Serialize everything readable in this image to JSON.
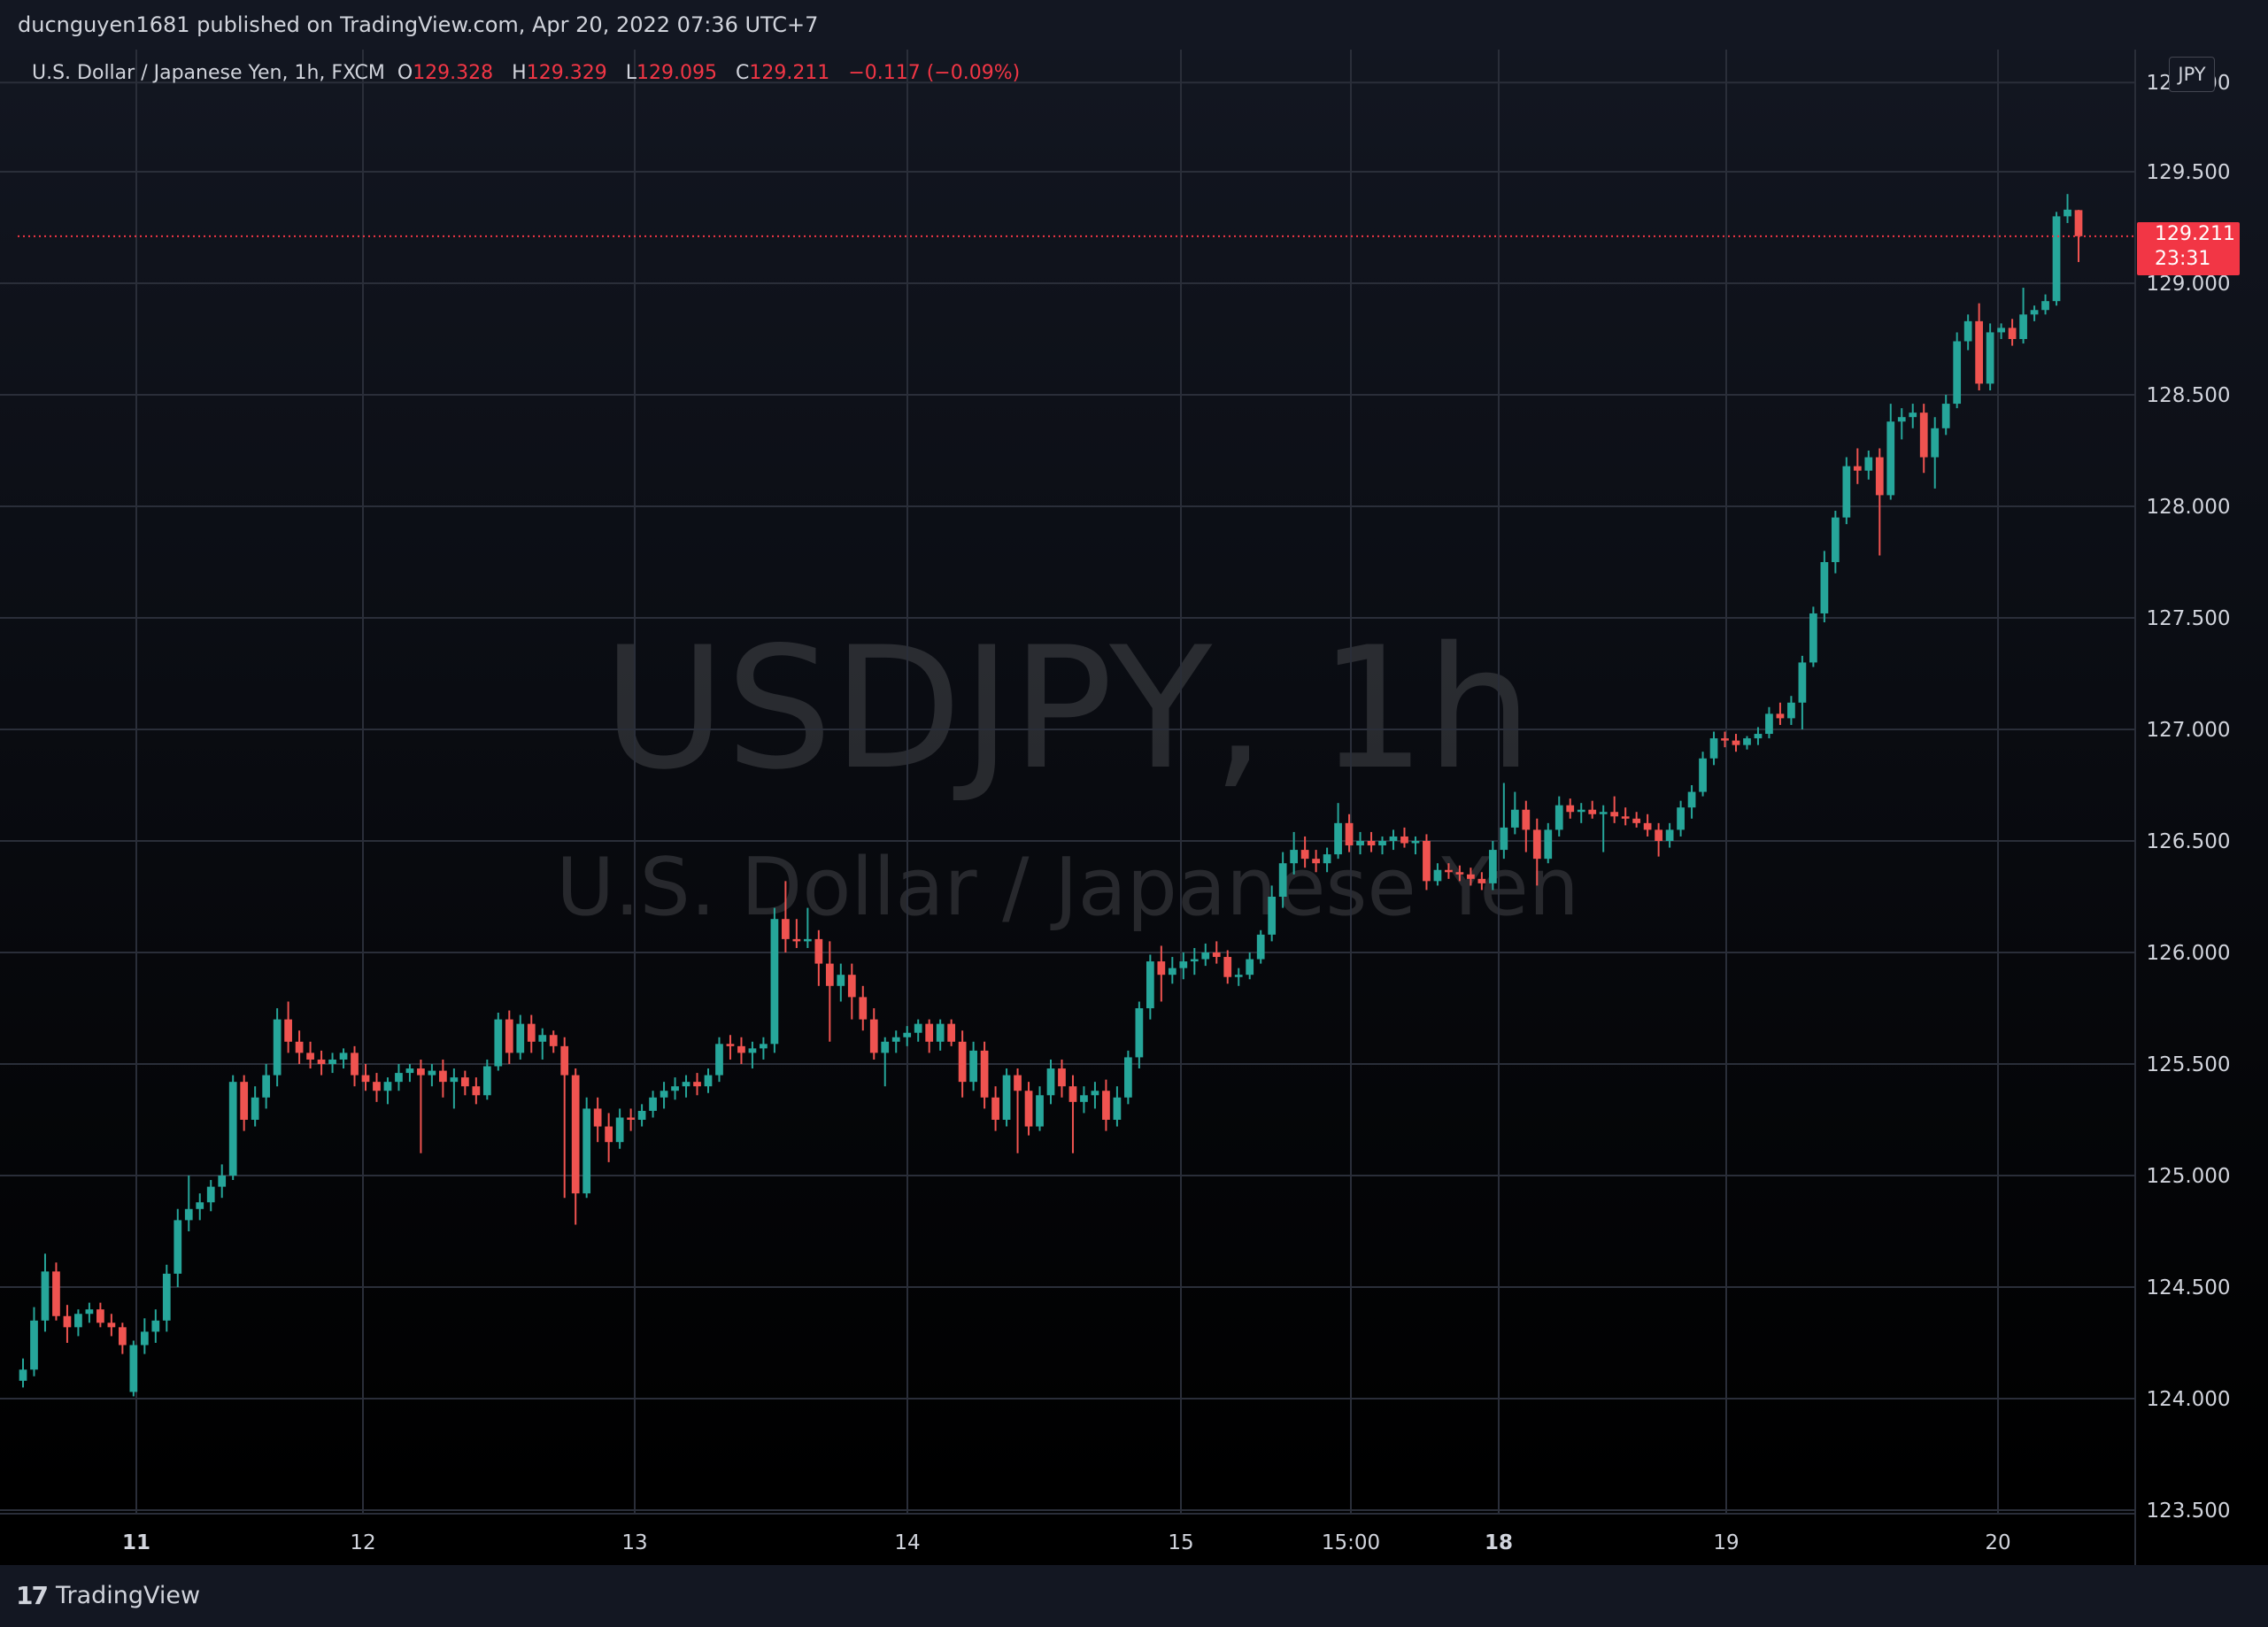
{
  "header": {
    "text": "ducnguyen1681 published on TradingView.com, Apr 20, 2022 07:36 UTC+7"
  },
  "legend": {
    "symbol": "U.S. Dollar / Japanese Yen, 1h, FXCM",
    "o_label": "O",
    "o_value": "129.328",
    "h_label": "H",
    "h_value": "129.329",
    "l_label": "L",
    "l_value": "129.095",
    "c_label": "C",
    "c_value": "129.211",
    "change": "−0.117 (−0.09%)"
  },
  "watermark": {
    "line1": "USDJPY, 1h",
    "line2": "U.S. Dollar / Japanese Yen"
  },
  "currency_button": "JPY",
  "last_price": {
    "price": "129.211",
    "countdown": "23:31"
  },
  "footer": {
    "brand": "TradingView",
    "logo_icon": "tradingview-logo-icon"
  },
  "colors": {
    "up": "#26a69a",
    "down": "#ef5350",
    "grid": "#2a2e39",
    "price_line": "#f23645",
    "background": "#131722"
  },
  "chart_data": {
    "type": "candlestick",
    "symbol": "USDJPY",
    "interval": "1h",
    "y_axis": {
      "ticks": [
        "129.500",
        "129.000",
        "128.500",
        "128.000",
        "127.500",
        "127.000",
        "126.500",
        "126.000",
        "125.500",
        "125.000",
        "124.500",
        "124.000"
      ],
      "top_partial": "129.900",
      "bottom_partial": "123.500",
      "ylim": [
        123.47,
        129.98
      ]
    },
    "x_axis": {
      "ticks": [
        {
          "label": "11",
          "bold": true
        },
        {
          "label": "12",
          "bold": false
        },
        {
          "label": "13",
          "bold": false
        },
        {
          "label": "14",
          "bold": false
        },
        {
          "label": "15",
          "bold": false
        },
        {
          "label": "15:00",
          "bold": false
        },
        {
          "label": "18",
          "bold": true
        },
        {
          "label": "19",
          "bold": false
        },
        {
          "label": "20",
          "bold": false
        }
      ]
    },
    "grid": true,
    "candles": [
      [
        124.08,
        124.18,
        124.05,
        124.13
      ],
      [
        124.13,
        124.41,
        124.1,
        124.35
      ],
      [
        124.35,
        124.65,
        124.3,
        124.57
      ],
      [
        124.57,
        124.61,
        124.35,
        124.37
      ],
      [
        124.37,
        124.42,
        124.25,
        124.32
      ],
      [
        124.32,
        124.4,
        124.28,
        124.38
      ],
      [
        124.38,
        124.43,
        124.34,
        124.4
      ],
      [
        124.4,
        124.43,
        124.32,
        124.34
      ],
      [
        124.34,
        124.38,
        124.28,
        124.32
      ],
      [
        124.32,
        124.34,
        124.2,
        124.24
      ],
      [
        124.03,
        124.26,
        124.01,
        124.24
      ],
      [
        124.24,
        124.36,
        124.2,
        124.3
      ],
      [
        124.3,
        124.4,
        124.25,
        124.35
      ],
      [
        124.35,
        124.6,
        124.3,
        124.56
      ],
      [
        124.56,
        124.85,
        124.5,
        124.8
      ],
      [
        124.8,
        125.0,
        124.75,
        124.85
      ],
      [
        124.85,
        124.92,
        124.8,
        124.88
      ],
      [
        124.88,
        124.98,
        124.84,
        124.95
      ],
      [
        124.95,
        125.05,
        124.9,
        125.0
      ],
      [
        125.0,
        125.45,
        124.98,
        125.42
      ],
      [
        125.42,
        125.45,
        125.2,
        125.25
      ],
      [
        125.25,
        125.4,
        125.22,
        125.35
      ],
      [
        125.35,
        125.5,
        125.3,
        125.45
      ],
      [
        125.45,
        125.75,
        125.4,
        125.7
      ],
      [
        125.7,
        125.78,
        125.55,
        125.6
      ],
      [
        125.6,
        125.65,
        125.5,
        125.55
      ],
      [
        125.55,
        125.6,
        125.48,
        125.52
      ],
      [
        125.52,
        125.56,
        125.45,
        125.5
      ],
      [
        125.5,
        125.55,
        125.46,
        125.52
      ],
      [
        125.52,
        125.57,
        125.48,
        125.55
      ],
      [
        125.55,
        125.58,
        125.4,
        125.45
      ],
      [
        125.45,
        125.5,
        125.38,
        125.42
      ],
      [
        125.42,
        125.46,
        125.33,
        125.38
      ],
      [
        125.38,
        125.44,
        125.32,
        125.42
      ],
      [
        125.42,
        125.5,
        125.38,
        125.46
      ],
      [
        125.46,
        125.5,
        125.42,
        125.48
      ],
      [
        125.48,
        125.52,
        125.1,
        125.45
      ],
      [
        125.45,
        125.5,
        125.4,
        125.47
      ],
      [
        125.47,
        125.52,
        125.35,
        125.42
      ],
      [
        125.42,
        125.48,
        125.3,
        125.44
      ],
      [
        125.44,
        125.47,
        125.36,
        125.4
      ],
      [
        125.4,
        125.44,
        125.32,
        125.36
      ],
      [
        125.36,
        125.52,
        125.34,
        125.49
      ],
      [
        125.49,
        125.73,
        125.47,
        125.7
      ],
      [
        125.7,
        125.74,
        125.5,
        125.55
      ],
      [
        125.55,
        125.72,
        125.52,
        125.68
      ],
      [
        125.68,
        125.72,
        125.55,
        125.6
      ],
      [
        125.6,
        125.66,
        125.52,
        125.63
      ],
      [
        125.63,
        125.65,
        125.55,
        125.58
      ],
      [
        125.58,
        125.62,
        124.9,
        125.45
      ],
      [
        125.45,
        125.48,
        124.78,
        124.92
      ],
      [
        124.92,
        125.35,
        124.9,
        125.3
      ],
      [
        125.3,
        125.35,
        125.15,
        125.22
      ],
      [
        125.22,
        125.28,
        125.06,
        125.15
      ],
      [
        125.15,
        125.3,
        125.12,
        125.26
      ],
      [
        125.26,
        125.3,
        125.2,
        125.25
      ],
      [
        125.25,
        125.32,
        125.22,
        125.29
      ],
      [
        125.29,
        125.38,
        125.26,
        125.35
      ],
      [
        125.35,
        125.42,
        125.3,
        125.38
      ],
      [
        125.38,
        125.44,
        125.34,
        125.4
      ],
      [
        125.4,
        125.45,
        125.35,
        125.42
      ],
      [
        125.42,
        125.46,
        125.36,
        125.4
      ],
      [
        125.4,
        125.48,
        125.37,
        125.45
      ],
      [
        125.45,
        125.62,
        125.42,
        125.59
      ],
      [
        125.59,
        125.63,
        125.52,
        125.58
      ],
      [
        125.58,
        125.62,
        125.5,
        125.55
      ],
      [
        125.55,
        125.6,
        125.48,
        125.57
      ],
      [
        125.57,
        125.62,
        125.52,
        125.59
      ],
      [
        125.59,
        126.2,
        125.55,
        126.15
      ],
      [
        126.15,
        126.32,
        126.0,
        126.06
      ],
      [
        126.06,
        126.15,
        126.02,
        126.05
      ],
      [
        126.05,
        126.2,
        126.02,
        126.06
      ],
      [
        126.06,
        126.1,
        125.85,
        125.95
      ],
      [
        125.95,
        126.05,
        125.6,
        125.85
      ],
      [
        125.85,
        125.95,
        125.78,
        125.9
      ],
      [
        125.9,
        125.95,
        125.7,
        125.8
      ],
      [
        125.8,
        125.85,
        125.65,
        125.7
      ],
      [
        125.7,
        125.75,
        125.52,
        125.55
      ],
      [
        125.55,
        125.62,
        125.4,
        125.6
      ],
      [
        125.6,
        125.65,
        125.55,
        125.62
      ],
      [
        125.62,
        125.67,
        125.58,
        125.64
      ],
      [
        125.64,
        125.7,
        125.6,
        125.68
      ],
      [
        125.68,
        125.7,
        125.55,
        125.6
      ],
      [
        125.6,
        125.7,
        125.56,
        125.68
      ],
      [
        125.68,
        125.7,
        125.58,
        125.6
      ],
      [
        125.6,
        125.65,
        125.35,
        125.42
      ],
      [
        125.42,
        125.6,
        125.38,
        125.56
      ],
      [
        125.56,
        125.6,
        125.3,
        125.35
      ],
      [
        125.35,
        125.4,
        125.2,
        125.25
      ],
      [
        125.25,
        125.48,
        125.22,
        125.45
      ],
      [
        125.45,
        125.48,
        125.1,
        125.38
      ],
      [
        125.38,
        125.42,
        125.18,
        125.22
      ],
      [
        125.22,
        125.4,
        125.2,
        125.36
      ],
      [
        125.36,
        125.52,
        125.32,
        125.48
      ],
      [
        125.48,
        125.52,
        125.35,
        125.4
      ],
      [
        125.4,
        125.45,
        125.1,
        125.33
      ],
      [
        125.33,
        125.4,
        125.28,
        125.36
      ],
      [
        125.36,
        125.42,
        125.3,
        125.38
      ],
      [
        125.38,
        125.43,
        125.2,
        125.25
      ],
      [
        125.25,
        125.4,
        125.22,
        125.35
      ],
      [
        125.35,
        125.56,
        125.32,
        125.53
      ],
      [
        125.53,
        125.78,
        125.48,
        125.75
      ],
      [
        125.75,
        125.99,
        125.7,
        125.96
      ],
      [
        125.96,
        126.03,
        125.78,
        125.9
      ],
      [
        125.9,
        125.98,
        125.86,
        125.93
      ],
      [
        125.93,
        126.0,
        125.88,
        125.96
      ],
      [
        125.96,
        126.02,
        125.9,
        125.97
      ],
      [
        125.97,
        126.04,
        125.94,
        126.0
      ],
      [
        126.0,
        126.05,
        125.95,
        125.98
      ],
      [
        125.98,
        126.01,
        125.86,
        125.89
      ],
      [
        125.89,
        125.93,
        125.85,
        125.9
      ],
      [
        125.9,
        126.0,
        125.88,
        125.97
      ],
      [
        125.97,
        126.1,
        125.95,
        126.08
      ],
      [
        126.08,
        126.3,
        126.05,
        126.25
      ],
      [
        126.25,
        126.45,
        126.2,
        126.4
      ],
      [
        126.4,
        126.54,
        126.35,
        126.46
      ],
      [
        126.46,
        126.52,
        126.38,
        126.42
      ],
      [
        126.42,
        126.46,
        126.36,
        126.4
      ],
      [
        126.4,
        126.47,
        126.36,
        126.44
      ],
      [
        126.44,
        126.67,
        126.42,
        126.58
      ],
      [
        126.58,
        126.62,
        126.45,
        126.48
      ],
      [
        126.48,
        126.54,
        126.44,
        126.5
      ],
      [
        126.5,
        126.54,
        126.45,
        126.48
      ],
      [
        126.48,
        126.52,
        126.44,
        126.5
      ],
      [
        126.5,
        126.55,
        126.46,
        126.52
      ],
      [
        126.52,
        126.56,
        126.47,
        126.49
      ],
      [
        126.49,
        126.52,
        126.44,
        126.5
      ],
      [
        126.5,
        126.53,
        126.28,
        126.32
      ],
      [
        126.32,
        126.4,
        126.3,
        126.37
      ],
      [
        126.37,
        126.4,
        126.33,
        126.36
      ],
      [
        126.36,
        126.39,
        126.32,
        126.35
      ],
      [
        126.35,
        126.38,
        126.3,
        126.33
      ],
      [
        126.33,
        126.36,
        126.28,
        126.31
      ],
      [
        126.31,
        126.5,
        126.28,
        126.46
      ],
      [
        126.46,
        126.76,
        126.42,
        126.56
      ],
      [
        126.56,
        126.72,
        126.53,
        126.64
      ],
      [
        126.64,
        126.68,
        126.45,
        126.55
      ],
      [
        126.55,
        126.6,
        126.3,
        126.42
      ],
      [
        126.42,
        126.58,
        126.4,
        126.55
      ],
      [
        126.55,
        126.7,
        126.52,
        126.66
      ],
      [
        126.66,
        126.69,
        126.6,
        126.63
      ],
      [
        126.63,
        126.67,
        126.58,
        126.64
      ],
      [
        126.64,
        126.68,
        126.6,
        126.62
      ],
      [
        126.62,
        126.66,
        126.45,
        126.63
      ],
      [
        126.63,
        126.7,
        126.58,
        126.61
      ],
      [
        126.61,
        126.65,
        126.57,
        126.6
      ],
      [
        126.6,
        126.63,
        126.56,
        126.58
      ],
      [
        126.58,
        126.62,
        126.52,
        126.55
      ],
      [
        126.55,
        126.58,
        126.43,
        126.5
      ],
      [
        126.5,
        126.58,
        126.47,
        126.55
      ],
      [
        126.55,
        126.68,
        126.52,
        126.65
      ],
      [
        126.65,
        126.75,
        126.6,
        126.72
      ],
      [
        126.72,
        126.9,
        126.7,
        126.87
      ],
      [
        126.87,
        126.99,
        126.84,
        126.96
      ],
      [
        126.96,
        126.99,
        126.92,
        126.95
      ],
      [
        126.95,
        126.98,
        126.9,
        126.93
      ],
      [
        126.93,
        126.97,
        126.91,
        126.96
      ],
      [
        126.96,
        127.01,
        126.93,
        126.98
      ],
      [
        126.98,
        127.1,
        126.96,
        127.07
      ],
      [
        127.07,
        127.12,
        127.02,
        127.05
      ],
      [
        127.05,
        127.15,
        127.02,
        127.12
      ],
      [
        127.12,
        127.33,
        127.0,
        127.3
      ],
      [
        127.3,
        127.55,
        127.28,
        127.52
      ],
      [
        127.52,
        127.8,
        127.48,
        127.75
      ],
      [
        127.75,
        127.98,
        127.7,
        127.95
      ],
      [
        127.95,
        128.22,
        127.92,
        128.18
      ],
      [
        128.18,
        128.26,
        128.1,
        128.16
      ],
      [
        128.16,
        128.25,
        128.12,
        128.22
      ],
      [
        128.22,
        128.26,
        127.78,
        128.05
      ],
      [
        128.05,
        128.46,
        128.03,
        128.38
      ],
      [
        128.38,
        128.44,
        128.3,
        128.4
      ],
      [
        128.4,
        128.46,
        128.35,
        128.42
      ],
      [
        128.42,
        128.46,
        128.15,
        128.22
      ],
      [
        128.22,
        128.4,
        128.08,
        128.35
      ],
      [
        128.35,
        128.5,
        128.32,
        128.46
      ],
      [
        128.46,
        128.78,
        128.44,
        128.74
      ],
      [
        128.74,
        128.86,
        128.7,
        128.83
      ],
      [
        128.83,
        128.91,
        128.52,
        128.55
      ],
      [
        128.55,
        128.82,
        128.52,
        128.78
      ],
      [
        128.78,
        128.82,
        128.75,
        128.8
      ],
      [
        128.8,
        128.84,
        128.72,
        128.75
      ],
      [
        128.75,
        128.98,
        128.73,
        128.86
      ],
      [
        128.86,
        128.9,
        128.83,
        128.88
      ],
      [
        128.88,
        128.95,
        128.86,
        128.92
      ],
      [
        128.92,
        129.32,
        128.9,
        129.3
      ],
      [
        129.3,
        129.4,
        129.27,
        129.33
      ],
      [
        129.328,
        129.329,
        129.095,
        129.211
      ]
    ]
  }
}
